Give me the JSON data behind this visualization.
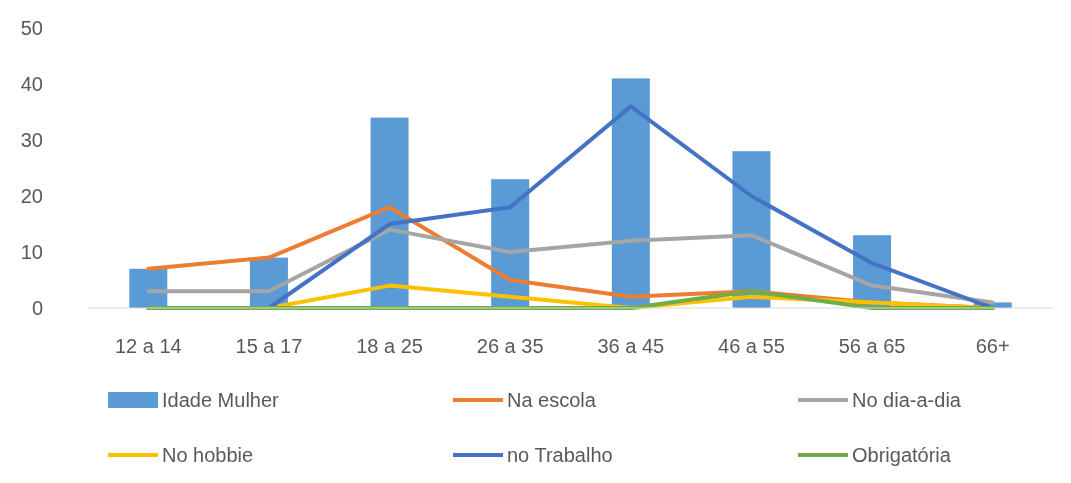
{
  "chart_data": {
    "type": "bar",
    "categories": [
      "12 a 14",
      "15 a 17",
      "18 a 25",
      "26 a 35",
      "36 a 45",
      "46 a 55",
      "56 a 65",
      "66+"
    ],
    "series": [
      {
        "name": "Idade Mulher",
        "color": "#5b9bd5",
        "values": [
          7,
          9,
          34,
          23,
          41,
          28,
          13,
          1
        ]
      },
      {
        "name": "Na escola",
        "type": "line",
        "color": "#ed7d31",
        "values": [
          7,
          9,
          18,
          5,
          2,
          3,
          1,
          0
        ]
      },
      {
        "name": "No dia-a-dia",
        "type": "line",
        "color": "#a5a5a5",
        "values": [
          3,
          3,
          14,
          10,
          12,
          13,
          4,
          1
        ]
      },
      {
        "name": "No hobbie",
        "type": "line",
        "color": "#ffc000",
        "values": [
          0,
          0,
          4,
          2,
          0,
          2,
          1,
          0
        ]
      },
      {
        "name": "no Trabalho",
        "type": "line",
        "color": "#4472c4",
        "values": [
          0,
          0,
          15,
          18,
          36,
          20,
          8,
          0
        ]
      },
      {
        "name": "Obrigatória",
        "type": "line",
        "color": "#70ad47",
        "values": [
          0,
          0,
          0,
          0,
          0,
          3,
          0,
          0
        ]
      }
    ],
    "ylim": [
      0,
      50
    ],
    "yticks": [
      0,
      10,
      20,
      30,
      40,
      50
    ],
    "grid": false,
    "legend": "bottom",
    "marker": "none",
    "line_style": "solid"
  }
}
